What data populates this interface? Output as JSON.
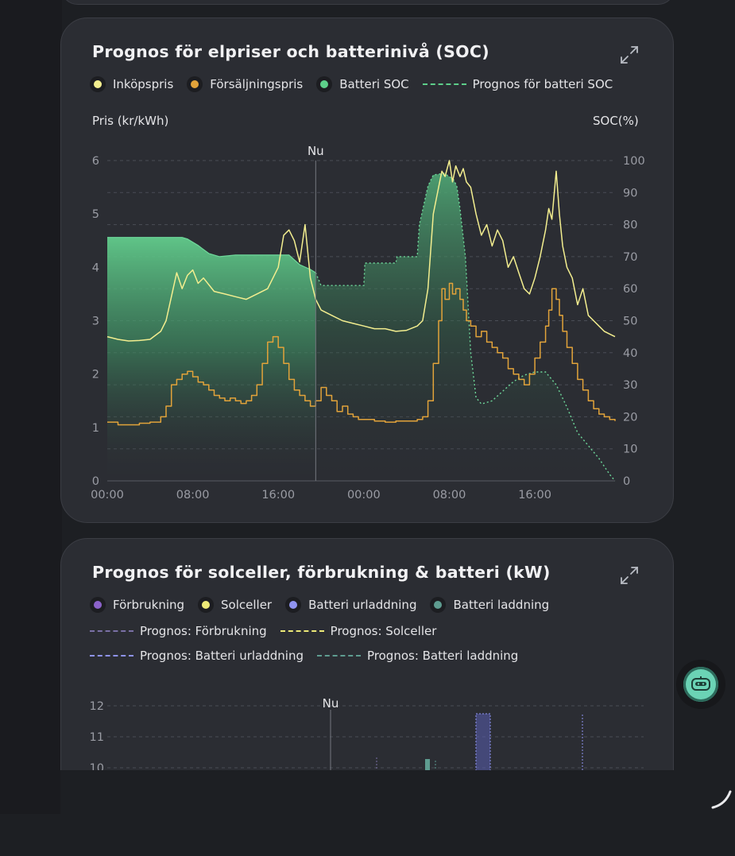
{
  "card1": {
    "title": "Prognos för elpriser och batterinivå (SOC)",
    "legend": [
      {
        "label": "Inköpspris",
        "color": "#f3ee8f",
        "style": "dot"
      },
      {
        "label": "Försäljningspris",
        "color": "#e2a33a",
        "style": "dot"
      },
      {
        "label": "Batteri SOC",
        "color": "#5dcf8a",
        "style": "dot"
      },
      {
        "label": "Prognos för batteri SOC",
        "color": "#5dcf8a",
        "style": "dash"
      }
    ],
    "left_axis_title": "Pris (kr/kWh)",
    "right_axis_title": "SOC(%)"
  },
  "card2": {
    "title": "Prognos för solceller, förbrukning & batteri (kW)",
    "legend_row1": [
      {
        "label": "Förbrukning",
        "color": "#8b62c9"
      },
      {
        "label": "Solceller",
        "color": "#ede977"
      },
      {
        "label": "Batteri urladdning",
        "color": "#8f93f0"
      },
      {
        "label": "Batteri laddning",
        "color": "#5e9c90"
      }
    ],
    "legend_row2": [
      {
        "label": "Prognos: Förbrukning",
        "color": "#7a70a6"
      },
      {
        "label": "Prognos: Solceller",
        "color": "#ede977"
      }
    ],
    "legend_row3": [
      {
        "label": "Prognos: Batteri urladdning",
        "color": "#8f93f0"
      },
      {
        "label": "Prognos: Batteri laddning",
        "color": "#5e9c90"
      }
    ]
  },
  "chart_data": [
    {
      "type": "line",
      "title": "Prognos för elpriser och batterinivå (SOC)",
      "ylabel": "Pris (kr/kWh)",
      "y2label": "SOC(%)",
      "ylim": [
        0,
        6
      ],
      "y2lim": [
        0,
        100
      ],
      "yticks": [
        "0",
        "1",
        "2",
        "3",
        "4",
        "5",
        "6"
      ],
      "y2ticks": [
        "0",
        "10",
        "20",
        "30",
        "40",
        "50",
        "60",
        "70",
        "80",
        "90",
        "100"
      ],
      "xticks": [
        {
          "hour": 0,
          "label": "00:00"
        },
        {
          "hour": 8,
          "label": "08:00"
        },
        {
          "hour": 16,
          "label": "16:00"
        },
        {
          "hour": 24,
          "label": "00:00"
        },
        {
          "hour": 32,
          "label": "08:00"
        },
        {
          "hour": 40,
          "label": "16:00"
        }
      ],
      "xlim": [
        0,
        47.5
      ],
      "now": {
        "hour": 19.5,
        "label": "Nu"
      },
      "series": [
        {
          "name": "Inköpspris",
          "color": "#f3ee8f",
          "hours": [
            0,
            1,
            2,
            3,
            4,
            5,
            5.5,
            6,
            6.5,
            7,
            7.5,
            8,
            8.5,
            9,
            10,
            11,
            12,
            13,
            14,
            15,
            15.5,
            16,
            16.5,
            17,
            17.5,
            18,
            18.5,
            19,
            19.5,
            20,
            21,
            22,
            23,
            24,
            25,
            26,
            27,
            28,
            29,
            29.5,
            30,
            30.5,
            31,
            31.3,
            31.6,
            32,
            32.3,
            32.6,
            33,
            33.3,
            33.6,
            34,
            34.5,
            35,
            35.5,
            36,
            36.5,
            37,
            37.5,
            38,
            38.5,
            39,
            39.5,
            40,
            40.5,
            41,
            41.3,
            41.6,
            42,
            42.3,
            42.6,
            43,
            43.5,
            44,
            44.5,
            45,
            45.5,
            46,
            46.5,
            47,
            47.5
          ],
          "values": [
            2.7,
            2.65,
            2.62,
            2.63,
            2.65,
            2.8,
            3.0,
            3.45,
            3.9,
            3.6,
            3.85,
            3.95,
            3.7,
            3.8,
            3.55,
            3.5,
            3.45,
            3.4,
            3.5,
            3.6,
            3.8,
            4.0,
            4.6,
            4.7,
            4.5,
            4.1,
            4.8,
            3.8,
            3.4,
            3.2,
            3.1,
            3.0,
            2.95,
            2.9,
            2.85,
            2.85,
            2.8,
            2.82,
            2.9,
            3.0,
            3.6,
            5.0,
            5.5,
            5.8,
            5.7,
            6.0,
            5.6,
            5.9,
            5.7,
            5.85,
            5.6,
            5.5,
            5.0,
            4.6,
            4.8,
            4.4,
            4.7,
            4.5,
            4.0,
            4.2,
            3.9,
            3.6,
            3.5,
            3.8,
            4.2,
            4.7,
            5.1,
            4.9,
            5.8,
            5.0,
            4.4,
            4.0,
            3.8,
            3.3,
            3.6,
            3.1,
            3.0,
            2.9,
            2.8,
            2.75,
            2.7
          ]
        },
        {
          "name": "Försäljningspris",
          "color": "#e2a33a",
          "step": true,
          "hours": [
            0,
            1,
            2,
            3,
            4,
            5,
            5.5,
            6,
            6.5,
            7,
            7.5,
            8,
            8.5,
            9,
            9.5,
            10,
            10.5,
            11,
            11.5,
            12,
            12.5,
            13,
            13.5,
            14,
            14.5,
            15,
            15.5,
            16,
            16.5,
            17,
            17.5,
            18,
            18.5,
            19,
            19.5,
            20,
            20.5,
            21,
            21.5,
            22,
            22.5,
            23,
            23.5,
            24,
            25,
            26,
            27,
            28,
            29,
            29.5,
            30,
            30.5,
            31,
            31.3,
            31.6,
            32,
            32.3,
            32.6,
            33,
            33.3,
            33.6,
            34,
            34.5,
            35,
            35.5,
            36,
            36.5,
            37,
            37.5,
            38,
            38.5,
            39,
            39.5,
            40,
            40.5,
            41,
            41.3,
            41.6,
            42,
            42.3,
            42.6,
            43,
            43.5,
            44,
            44.5,
            45,
            45.5,
            46,
            46.5,
            47,
            47.5
          ],
          "values": [
            1.1,
            1.05,
            1.05,
            1.08,
            1.1,
            1.2,
            1.4,
            1.8,
            1.9,
            2.0,
            2.05,
            1.95,
            1.85,
            1.8,
            1.7,
            1.6,
            1.55,
            1.5,
            1.55,
            1.5,
            1.45,
            1.5,
            1.6,
            1.8,
            2.2,
            2.6,
            2.7,
            2.5,
            2.2,
            1.9,
            1.7,
            1.6,
            1.5,
            1.4,
            1.5,
            1.75,
            1.6,
            1.5,
            1.3,
            1.4,
            1.25,
            1.2,
            1.15,
            1.15,
            1.12,
            1.1,
            1.12,
            1.12,
            1.15,
            1.2,
            1.5,
            2.2,
            3.0,
            3.6,
            3.4,
            3.7,
            3.5,
            3.6,
            3.4,
            3.2,
            3.0,
            2.9,
            2.7,
            2.8,
            2.6,
            2.5,
            2.4,
            2.3,
            2.1,
            2.0,
            1.9,
            1.8,
            2.0,
            2.3,
            2.6,
            2.9,
            3.2,
            3.6,
            3.4,
            3.1,
            2.8,
            2.5,
            2.2,
            1.9,
            1.7,
            1.5,
            1.35,
            1.25,
            1.2,
            1.15,
            1.12
          ]
        },
        {
          "name": "Batteri SOC",
          "color": "#5dcf8a",
          "axis": "right",
          "hours": [
            0,
            7,
            7.5,
            8.5,
            9.5,
            10.5,
            12,
            14,
            15,
            16,
            17,
            18,
            19,
            19.5
          ],
          "values": [
            76,
            76,
            75.5,
            73.5,
            71,
            70,
            70.5,
            70.5,
            70.5,
            70.5,
            70.5,
            67.5,
            66,
            65
          ]
        },
        {
          "name": "Prognos för batteri SOC",
          "color": "#5dcf8a",
          "axis": "right",
          "dashed": true,
          "hours": [
            19.5,
            20,
            22,
            22.1,
            24,
            24.1,
            27,
            27.1,
            28,
            29,
            29.2,
            30,
            30.5,
            31.5,
            32,
            32.4,
            32.7,
            33,
            33.5,
            34,
            34.5,
            35,
            36,
            37,
            38,
            39,
            40,
            41,
            42,
            43,
            44,
            45,
            46,
            47,
            47.5
          ],
          "values": [
            65,
            61,
            61,
            61,
            61,
            68,
            68,
            70,
            70,
            70,
            80,
            92,
            95.5,
            96,
            95,
            94,
            92,
            85,
            70,
            40,
            26,
            24,
            25,
            28,
            31,
            33,
            34,
            34,
            30,
            23,
            15,
            11,
            7,
            2,
            0
          ]
        }
      ]
    },
    {
      "type": "bar",
      "title": "Prognos för solceller, förbrukning & batteri (kW)",
      "yticks": [
        "12",
        "11",
        "10"
      ],
      "now": {
        "label": "Nu"
      }
    }
  ]
}
